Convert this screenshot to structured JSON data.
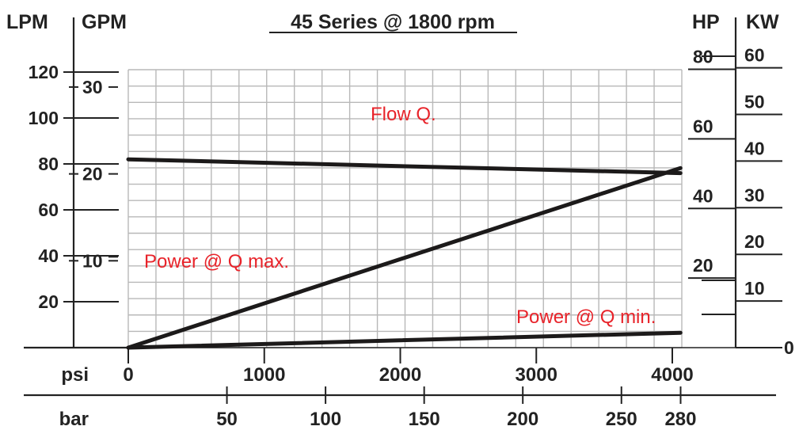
{
  "chart_data": {
    "type": "line",
    "title": "45 Series @ 1800 rpm",
    "axes": {
      "lpm": {
        "label": "LPM",
        "ticks": [
          "120",
          "100",
          "80",
          "60",
          "40",
          "20"
        ],
        "values": [
          120,
          100,
          80,
          60,
          40,
          20
        ]
      },
      "gpm": {
        "label": "GPM",
        "ticks": [
          "30",
          "20",
          "10"
        ],
        "values": [
          30,
          20,
          10
        ]
      },
      "hp": {
        "label": "HP",
        "ticks": [
          "80",
          "60",
          "40",
          "20"
        ],
        "values": [
          80,
          60,
          40,
          20
        ]
      },
      "kw": {
        "label": "KW",
        "ticks": [
          "60",
          "50",
          "40",
          "30",
          "20",
          "10",
          "0"
        ],
        "values": [
          60,
          50,
          40,
          30,
          20,
          10,
          0
        ]
      },
      "psi": {
        "label": "psi",
        "ticks": [
          "0",
          "1000",
          "2000",
          "3000",
          "4000"
        ],
        "values": [
          0,
          1000,
          2000,
          3000,
          4000
        ]
      },
      "bar": {
        "label": "bar",
        "ticks": [
          "50",
          "100",
          "150",
          "200",
          "250",
          "280"
        ],
        "values": [
          50,
          100,
          150,
          200,
          250,
          280
        ]
      }
    },
    "xlim": [
      0,
      4060
    ],
    "grid": true,
    "series": [
      {
        "name": "Flow Q.",
        "unit": "LPM",
        "x": [
          0,
          4060
        ],
        "y": [
          82,
          76
        ]
      },
      {
        "name": "Power @ Q max.",
        "unit": "KW",
        "x": [
          0,
          4060
        ],
        "y": [
          0,
          38.5
        ]
      },
      {
        "name": "Power @ Q min.",
        "unit": "KW",
        "x": [
          0,
          4060
        ],
        "y": [
          0,
          3.2
        ]
      }
    ],
    "colors": {
      "curve": "#1c1a1a",
      "label": "#e8232a",
      "grid": "#b8b8b8",
      "text": "#222222"
    }
  }
}
